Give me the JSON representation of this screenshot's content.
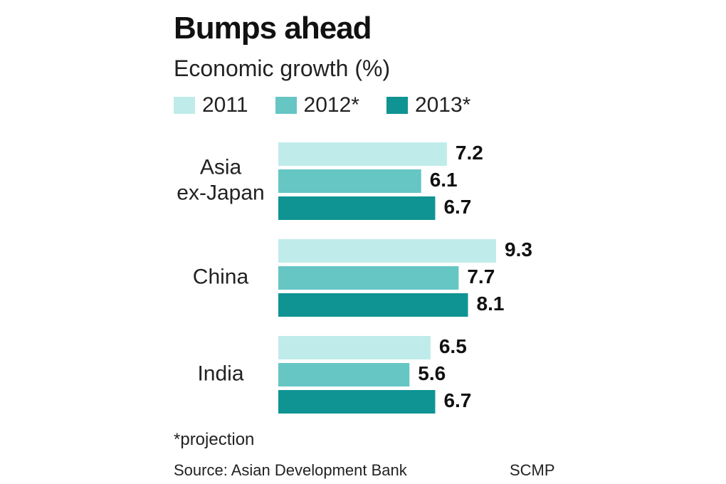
{
  "title": "Bumps ahead",
  "subtitle": "Economic growth (%)",
  "footnote": "*projection",
  "source": "Source: Asian Development Bank",
  "credit": "SCMP",
  "colors": {
    "series_2011": "#bfeceb",
    "series_2012": "#66c6c4",
    "series_2013": "#0f9393",
    "text": "#111111"
  },
  "chart_data": {
    "type": "bar",
    "orientation": "horizontal",
    "title": "Bumps ahead",
    "subtitle": "Economic growth (%)",
    "categories": [
      [
        "Asia",
        "ex-Japan"
      ],
      [
        "China"
      ],
      [
        "India"
      ]
    ],
    "series": [
      {
        "name": "2011",
        "values": [
          7.2,
          9.3,
          6.5
        ]
      },
      {
        "name": "2012*",
        "values": [
          6.1,
          7.7,
          5.6
        ]
      },
      {
        "name": "2013*",
        "values": [
          6.7,
          8.1,
          6.7
        ]
      }
    ],
    "data_labels": [
      [
        "7.2",
        "6.1",
        "6.7"
      ],
      [
        "9.3",
        "7.7",
        "8.1"
      ],
      [
        "6.5",
        "5.6",
        "6.7"
      ]
    ],
    "xlim": [
      0,
      9.3
    ],
    "legend_position": "top",
    "grid": false,
    "xlabel": "",
    "ylabel": ""
  }
}
